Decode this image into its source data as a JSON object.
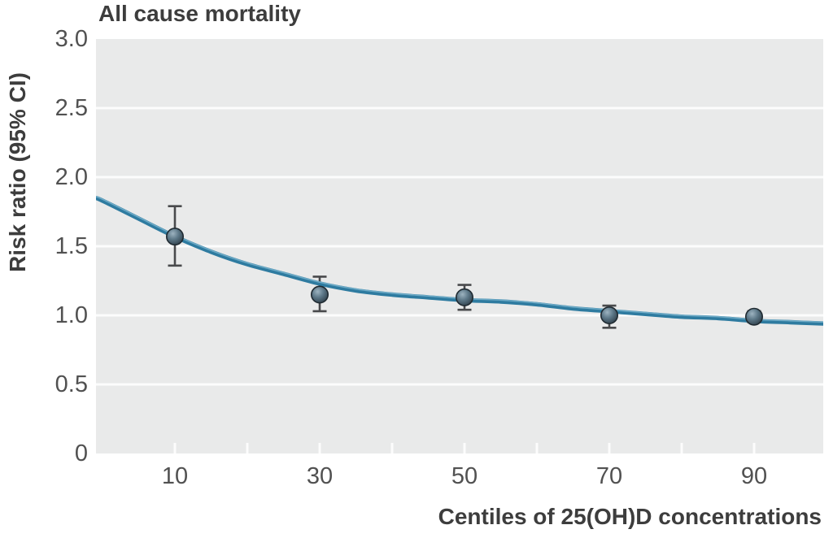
{
  "chart_data": {
    "type": "scatter",
    "title": "All cause mortality",
    "xlabel": "Centiles of 25(OH)D concentrations",
    "ylabel": "Risk ratio (95% CI)",
    "xlim": [
      -1,
      100
    ],
    "ylim": [
      0,
      3.0
    ],
    "grid": "horizontal white gridlines on gray panel",
    "legend": "none",
    "x_ticks": [
      {
        "v": 10,
        "label": "10"
      },
      {
        "v": 30,
        "label": "30"
      },
      {
        "v": 50,
        "label": "50"
      },
      {
        "v": 70,
        "label": "70"
      },
      {
        "v": 90,
        "label": "90"
      }
    ],
    "x_minor_ticks": [
      10,
      20,
      30,
      40,
      50,
      60,
      70,
      80,
      90
    ],
    "y_ticks": [
      {
        "v": 0,
        "label": "0"
      },
      {
        "v": 0.5,
        "label": "0.5"
      },
      {
        "v": 1.0,
        "label": "1.0"
      },
      {
        "v": 1.5,
        "label": "1.5"
      },
      {
        "v": 2.0,
        "label": "2.0"
      },
      {
        "v": 2.5,
        "label": "2.5"
      },
      {
        "v": 3.0,
        "label": "3.0"
      }
    ],
    "series": [
      {
        "name": "observed risk ratio with 95% CI",
        "type": "scatter-errorbar",
        "points": [
          {
            "x": 10,
            "y": 1.57,
            "lo": 1.36,
            "hi": 1.79
          },
          {
            "x": 30,
            "y": 1.15,
            "lo": 1.03,
            "hi": 1.28
          },
          {
            "x": 50,
            "y": 1.13,
            "lo": 1.04,
            "hi": 1.22
          },
          {
            "x": 70,
            "y": 1.0,
            "lo": 0.91,
            "hi": 1.07
          },
          {
            "x": 90,
            "y": 0.99,
            "lo": 0.95,
            "hi": 1.03
          }
        ]
      },
      {
        "name": "fitted trend curve",
        "type": "line",
        "points": [
          {
            "x": -1,
            "y": 1.85
          },
          {
            "x": 0,
            "y": 1.83
          },
          {
            "x": 5,
            "y": 1.7
          },
          {
            "x": 10,
            "y": 1.57
          },
          {
            "x": 15,
            "y": 1.46
          },
          {
            "x": 20,
            "y": 1.37
          },
          {
            "x": 25,
            "y": 1.3
          },
          {
            "x": 30,
            "y": 1.23
          },
          {
            "x": 35,
            "y": 1.18
          },
          {
            "x": 40,
            "y": 1.15
          },
          {
            "x": 45,
            "y": 1.13
          },
          {
            "x": 50,
            "y": 1.11
          },
          {
            "x": 55,
            "y": 1.1
          },
          {
            "x": 60,
            "y": 1.08
          },
          {
            "x": 65,
            "y": 1.05
          },
          {
            "x": 70,
            "y": 1.03
          },
          {
            "x": 75,
            "y": 1.01
          },
          {
            "x": 80,
            "y": 0.99
          },
          {
            "x": 85,
            "y": 0.98
          },
          {
            "x": 90,
            "y": 0.96
          },
          {
            "x": 95,
            "y": 0.95
          },
          {
            "x": 100,
            "y": 0.94
          }
        ]
      }
    ],
    "colors": {
      "plot_background": "#e9eaea",
      "gridline": "#fcfcfc",
      "curve": "#2e7ba0",
      "curve_highlight": "#7db6cf",
      "marker_light": "#9db3c0",
      "marker_mid": "#5d7888",
      "marker_dark": "#2b3a44",
      "marker_rim": "#1f2a31",
      "error_bar": "#494a4c",
      "title_text": "#3d3d3d",
      "tick_text": "#515151"
    }
  }
}
